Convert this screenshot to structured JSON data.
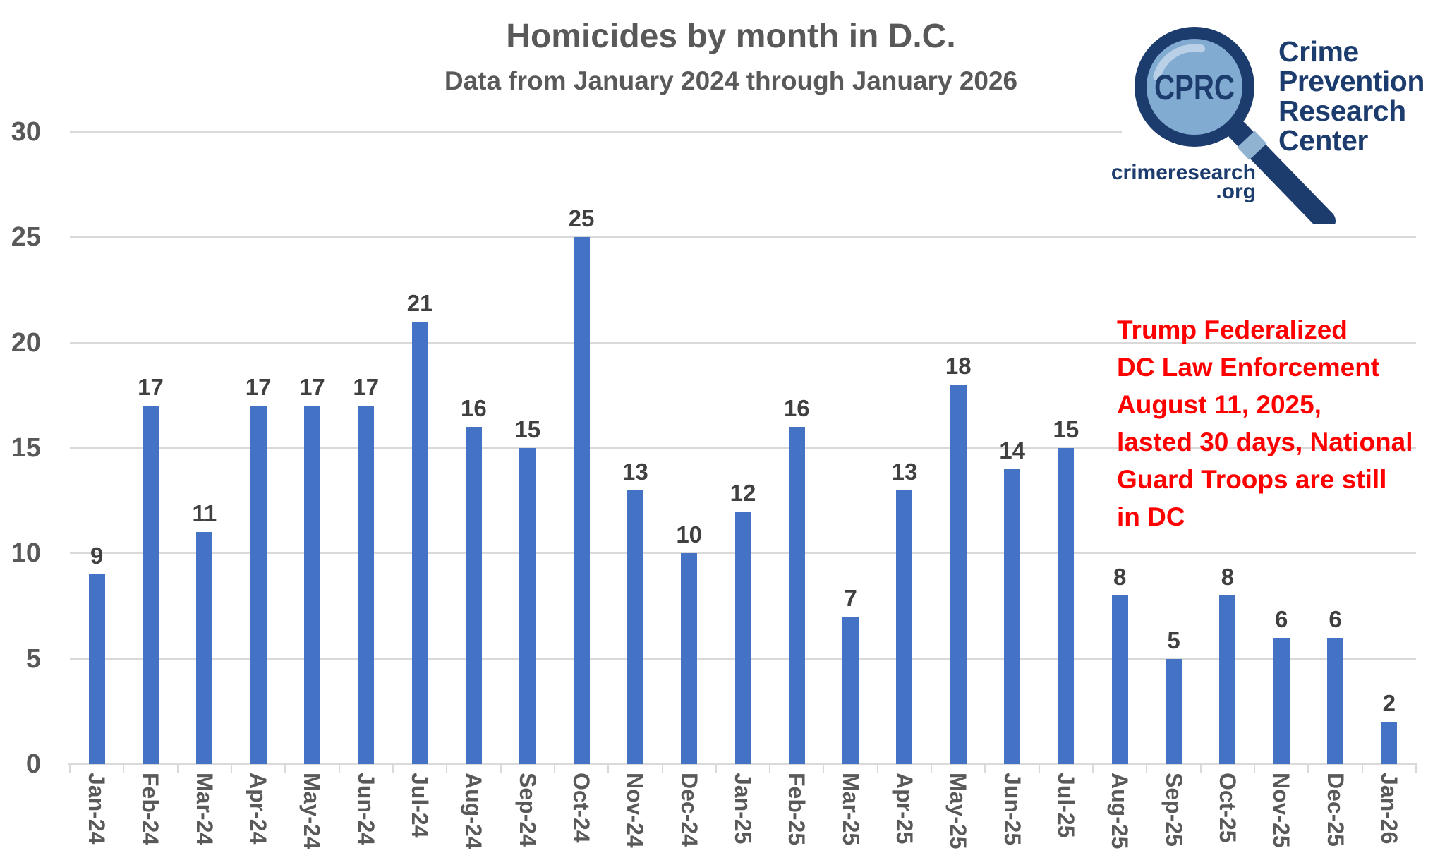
{
  "chart_data": {
    "type": "bar",
    "title": "Homicides by month in D.C.",
    "subtitle": "Data from January 2024 through January 2026",
    "categories": [
      "Jan-24",
      "Feb-24",
      "Mar-24",
      "Apr-24",
      "May-24",
      "Jun-24",
      "Jul-24",
      "Aug-24",
      "Sep-24",
      "Oct-24",
      "Nov-24",
      "Dec-24",
      "Jan-25",
      "Feb-25",
      "Mar-25",
      "Apr-25",
      "May-25",
      "Jun-25",
      "Jul-25",
      "Aug-25",
      "Sep-25",
      "Oct-25",
      "Nov-25",
      "Dec-25",
      "Jan-26"
    ],
    "values": [
      9,
      17,
      11,
      17,
      17,
      17,
      21,
      16,
      15,
      25,
      13,
      10,
      12,
      16,
      7,
      13,
      18,
      14,
      15,
      8,
      5,
      8,
      6,
      6,
      2
    ],
    "ylim": [
      0,
      30
    ],
    "yticks": [
      0,
      5,
      10,
      15,
      20,
      25,
      30
    ],
    "grid": true,
    "legend": false,
    "data_labels": true,
    "bar_color": "#4472C4",
    "gridline_color": "#D9D9D9",
    "axis_text_color": "#595959",
    "data_label_color": "#404040"
  },
  "annotation": {
    "color": "#FF0000",
    "lines": [
      "Trump Federalized",
      "DC Law Enforcement",
      "August 11, 2025,",
      "lasted 30 days, National",
      "Guard Troops are still",
      "in DC"
    ]
  },
  "logo": {
    "acronym": "CPRC",
    "org_lines": [
      "Crime",
      "Prevention",
      "Research",
      "Center"
    ],
    "website_line1": "crimeresearch",
    "website_line2": ".org",
    "navy": "#1D3C6E",
    "lens_blue": "#82ABD2",
    "highlight_blue": "#B9D0E6",
    "ferrule_blue": "#8FB3D1"
  }
}
